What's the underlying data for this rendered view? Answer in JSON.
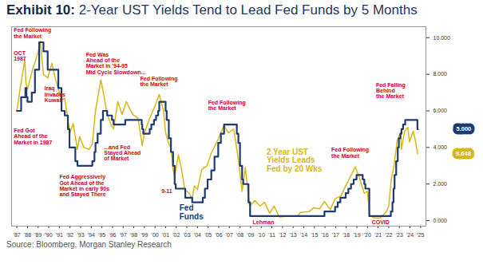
{
  "chart_data": {
    "type": "line",
    "title": "Exhibit 10:  2-Year UST Yields Tend to Lead Fed Funds by 5 Months",
    "caption": "Source: Bloomberg, Morgan Stanley Research",
    "xlim": [
      1986.5,
      2025.5
    ],
    "xticks": [
      {
        "value": 1987,
        "label": "'87"
      },
      {
        "value": 1988,
        "label": "'88"
      },
      {
        "value": 1989,
        "label": "'89"
      },
      {
        "value": 1990,
        "label": "'90"
      },
      {
        "value": 1991,
        "label": "'91"
      },
      {
        "value": 1992,
        "label": "'92"
      },
      {
        "value": 1993,
        "label": "'93"
      },
      {
        "value": 1994,
        "label": "'94"
      },
      {
        "value": 1995,
        "label": "'95"
      },
      {
        "value": 1996,
        "label": "'96"
      },
      {
        "value": 1997,
        "label": "'97"
      },
      {
        "value": 1998,
        "label": "'98"
      },
      {
        "value": 1999,
        "label": "'99"
      },
      {
        "value": 2000,
        "label": "'00"
      },
      {
        "value": 2001,
        "label": "'01"
      },
      {
        "value": 2002,
        "label": "'02"
      },
      {
        "value": 2003,
        "label": "'03"
      },
      {
        "value": 2004,
        "label": "'04"
      },
      {
        "value": 2005,
        "label": "'05"
      },
      {
        "value": 2006,
        "label": "'06"
      },
      {
        "value": 2007,
        "label": "'07"
      },
      {
        "value": 2008,
        "label": "'08"
      },
      {
        "value": 2009,
        "label": "'09"
      },
      {
        "value": 2010,
        "label": "'10"
      },
      {
        "value": 2011,
        "label": "'11"
      },
      {
        "value": 2012,
        "label": "'12"
      },
      {
        "value": 2013,
        "label": "'13"
      },
      {
        "value": 2014,
        "label": "'14"
      },
      {
        "value": 2015,
        "label": "'15"
      },
      {
        "value": 2016,
        "label": "'16"
      },
      {
        "value": 2017,
        "label": "'17"
      },
      {
        "value": 2018,
        "label": "'18"
      },
      {
        "value": 2019,
        "label": "'19"
      },
      {
        "value": 2020,
        "label": "'20"
      },
      {
        "value": 2021,
        "label": "'21"
      },
      {
        "value": 2022,
        "label": "'22"
      },
      {
        "value": 2023,
        "label": "'23"
      },
      {
        "value": 2024,
        "label": "'24"
      },
      {
        "value": 2025,
        "label": "'25"
      }
    ],
    "ylim": [
      -0.3,
      10.6
    ],
    "yticks": [
      {
        "value": 0,
        "label": "0.000"
      },
      {
        "value": 2,
        "label": "2.000"
      },
      {
        "value": 4,
        "label": "4.000"
      },
      {
        "value": 6,
        "label": "6.000"
      },
      {
        "value": 8,
        "label": "8.000"
      },
      {
        "value": 10,
        "label": "10.000"
      }
    ],
    "grid": false,
    "series": [
      {
        "name": "2-Year UST Yields",
        "color": "#d6b716",
        "line_style": "solid",
        "x": [
          1987.0,
          1987.3,
          1987.75,
          1987.85,
          1988.0,
          1988.5,
          1989.0,
          1989.2,
          1989.5,
          1989.9,
          1990.3,
          1990.6,
          1990.9,
          1991.2,
          1991.5,
          1991.8,
          1992.0,
          1992.3,
          1992.7,
          1992.9,
          1993.3,
          1993.8,
          1994.1,
          1994.4,
          1994.9,
          1995.2,
          1995.5,
          1995.9,
          1996.1,
          1996.5,
          1996.9,
          1997.3,
          1997.9,
          1998.4,
          1998.8,
          1999.0,
          1999.5,
          1999.95,
          2000.4,
          2000.8,
          2001.0,
          2001.3,
          2001.5,
          2001.7,
          2001.85,
          2002.2,
          2002.5,
          2002.8,
          2003.2,
          2003.5,
          2003.7,
          2004.0,
          2004.4,
          2004.9,
          2005.3,
          2005.9,
          2006.5,
          2006.9,
          2007.4,
          2007.6,
          2007.9,
          2008.2,
          2008.5,
          2008.9,
          2009.4,
          2009.9,
          2010.3,
          2010.8,
          2011.2,
          2011.7,
          2012.5,
          2013.4,
          2013.7,
          2014.5,
          2014.95,
          2015.5,
          2015.95,
          2016.5,
          2016.95,
          2017.5,
          2017.95,
          2018.3,
          2018.85,
          2019.2,
          2019.7,
          2020.0,
          2020.2,
          2020.6,
          2021.2,
          2021.8,
          2022.0,
          2022.25,
          2022.5,
          2022.8,
          2023.1,
          2023.2,
          2023.5,
          2023.8,
          2023.95,
          2024.3,
          2024.5,
          2024.72
        ],
        "values": [
          6.0,
          7.2,
          8.8,
          7.5,
          7.2,
          8.3,
          9.2,
          9.8,
          8.0,
          7.8,
          8.6,
          7.8,
          7.2,
          6.6,
          6.7,
          5.5,
          4.8,
          5.3,
          3.9,
          4.6,
          4.0,
          3.9,
          4.2,
          6.0,
          7.7,
          6.8,
          5.8,
          5.2,
          5.0,
          6.5,
          5.8,
          6.5,
          5.8,
          5.6,
          4.1,
          4.8,
          5.6,
          6.2,
          6.9,
          6.0,
          4.8,
          4.2,
          4.0,
          2.8,
          2.4,
          3.6,
          2.8,
          1.7,
          1.5,
          1.2,
          1.9,
          1.7,
          2.8,
          3.0,
          3.7,
          4.4,
          5.2,
          4.8,
          5.0,
          4.3,
          3.1,
          1.6,
          2.9,
          0.8,
          1.1,
          0.8,
          1.0,
          0.4,
          0.8,
          0.2,
          0.25,
          0.25,
          0.45,
          0.5,
          0.7,
          0.65,
          1.05,
          0.6,
          1.2,
          1.35,
          1.9,
          2.3,
          2.95,
          2.4,
          1.5,
          1.6,
          0.3,
          0.15,
          0.15,
          0.5,
          0.8,
          2.3,
          3.0,
          4.4,
          4.8,
          3.9,
          4.9,
          5.1,
          4.3,
          4.9,
          4.4,
          3.648
        ],
        "end_label": "3.648"
      },
      {
        "name": "Fed Funds",
        "color": "#1f3a6e",
        "line_style": "step",
        "x": [
          1987.0,
          1987.4,
          1987.8,
          1987.9,
          1988.0,
          1988.4,
          1988.7,
          1989.1,
          1989.5,
          1989.9,
          1990.9,
          1991.2,
          1991.5,
          1991.8,
          1991.95,
          1992.5,
          1992.7,
          1994.1,
          1994.3,
          1994.4,
          1994.6,
          1994.9,
          1995.1,
          1995.5,
          1995.95,
          1996.1,
          1997.2,
          1998.75,
          1998.8,
          1998.9,
          1999.5,
          1999.65,
          1999.9,
          2000.1,
          2000.3,
          2000.4,
          2001.0,
          2001.1,
          2001.3,
          2001.5,
          2001.7,
          2001.85,
          2001.95,
          2002.85,
          2003.5,
          2004.5,
          2004.7,
          2004.95,
          2005.3,
          2005.6,
          2005.95,
          2006.2,
          2006.5,
          2007.7,
          2007.85,
          2008.0,
          2008.2,
          2008.3,
          2008.8,
          2008.95,
          2015.95,
          2016.95,
          2017.2,
          2017.45,
          2017.95,
          2018.2,
          2018.45,
          2018.7,
          2018.97,
          2019.55,
          2019.7,
          2019.8,
          2020.17,
          2022.2,
          2022.35,
          2022.45,
          2022.55,
          2022.7,
          2022.85,
          2022.95,
          2023.1,
          2023.2,
          2023.35,
          2023.55,
          2024.7,
          2024.75
        ],
        "values": [
          6.0,
          6.75,
          7.25,
          6.75,
          6.5,
          7.0,
          8.25,
          9.75,
          9.25,
          8.25,
          7.25,
          6.0,
          5.75,
          5.0,
          4.0,
          3.25,
          3.0,
          3.25,
          3.75,
          4.25,
          4.75,
          5.5,
          6.0,
          5.75,
          5.5,
          5.25,
          5.5,
          5.25,
          5.0,
          4.75,
          5.0,
          5.25,
          5.5,
          5.75,
          6.0,
          6.5,
          6.0,
          5.5,
          4.5,
          3.75,
          3.0,
          2.0,
          1.75,
          1.25,
          1.0,
          1.25,
          1.75,
          2.25,
          2.75,
          3.5,
          4.25,
          4.75,
          5.25,
          4.75,
          4.25,
          3.0,
          2.25,
          2.0,
          1.0,
          0.25,
          0.5,
          0.75,
          1.0,
          1.25,
          1.5,
          1.75,
          2.0,
          2.25,
          2.5,
          2.25,
          2.0,
          1.75,
          0.25,
          0.5,
          1.0,
          1.75,
          2.5,
          3.25,
          4.0,
          4.5,
          4.75,
          5.0,
          5.25,
          5.5,
          5.0,
          5.0
        ],
        "end_label": "5.000"
      }
    ],
    "annotations": [
      {
        "text": "Fed Following\nthe Market",
        "x": 1986.7,
        "y": 10.25,
        "color": "#d0021b"
      },
      {
        "text": "OCT\n1987",
        "x": 1986.7,
        "y": 9.0,
        "color": "#d0021b"
      },
      {
        "text": "Iraq\nInvades\nKuwait",
        "x": 1989.6,
        "y": 6.9,
        "color": "#d0021b"
      },
      {
        "text": "Fed Got\nAhead of the\nMarket in 1987",
        "x": 1986.7,
        "y": 4.6,
        "color": "#d0021b"
      },
      {
        "text": "Fed Aggressively\nGot Ahead of the\nMarket in early 90s\nand Stayed There",
        "x": 1991.0,
        "y": 1.9,
        "color": "#d0021b"
      },
      {
        "text": "Fed Was\nAhead of the\nMarket in '94-95\nMid Cycle Slowdown...",
        "x": 1993.5,
        "y": 8.6,
        "color": "#d0021b"
      },
      {
        "text": "...and Fed\nStayed Ahead\nof Market",
        "x": 1995.2,
        "y": 3.7,
        "color": "#d0021b"
      },
      {
        "text": "Fed Following\nthe Market",
        "x": 1998.6,
        "y": 7.6,
        "color": "#d0021b"
      },
      {
        "text": "9-11",
        "x": 2000.6,
        "y": 1.6,
        "color": "#d0021b"
      },
      {
        "text": "Fed\nFunds",
        "x": 2002.3,
        "y": 0.45,
        "color": "#1f3a6e"
      },
      {
        "text": "Fed Following\nthe Market",
        "x": 2005.0,
        "y": 6.3,
        "color": "#d0021b"
      },
      {
        "text": "Lehman",
        "x": 2009.2,
        "y": -0.1,
        "color": "#d0021b"
      },
      {
        "text": "2 Year UST\nYields Leads\nFed by 20 Wks",
        "x": 2010.5,
        "y": 3.3,
        "color": "#d6b716"
      },
      {
        "text": "Fed Following\nthe Market",
        "x": 2016.6,
        "y": 3.7,
        "color": "#d0021b"
      },
      {
        "text": "COVID",
        "x": 2020.4,
        "y": -0.1,
        "color": "#d0021b"
      },
      {
        "text": "Fed Falling\nBehind\nthe Market",
        "x": 2020.8,
        "y": 7.1,
        "color": "#d0021b"
      }
    ]
  }
}
